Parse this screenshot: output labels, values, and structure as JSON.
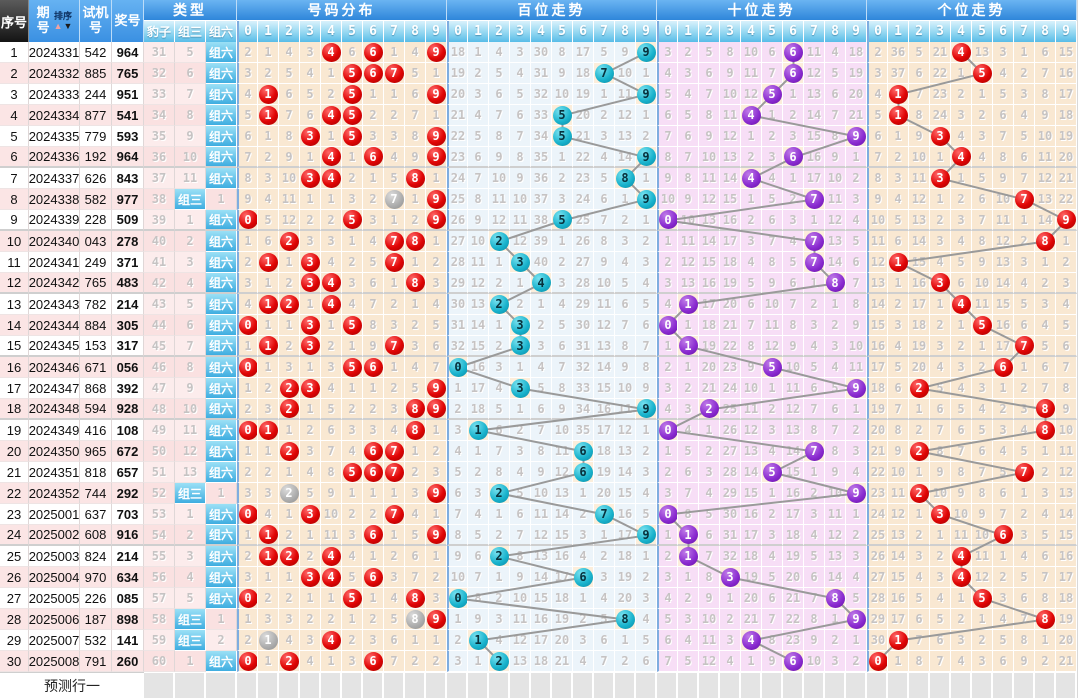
{
  "header": {
    "seq_label": "序号",
    "period_label": "期号",
    "sort_label": "排序",
    "test_label": "试机号",
    "prize_label": "奖号",
    "type_label": "类型",
    "type_subs": [
      "豹子",
      "组三",
      "组六"
    ],
    "sections": [
      {
        "id": "dist",
        "label": "号码分布"
      },
      {
        "id": "hundreds",
        "label": "百位走势"
      },
      {
        "id": "tens",
        "label": "十位走势"
      },
      {
        "id": "units",
        "label": "个位走势"
      }
    ],
    "digits": [
      "0",
      "1",
      "2",
      "3",
      "4",
      "5",
      "6",
      "7",
      "8",
      "9"
    ]
  },
  "footer": {
    "prediction_label": "预测行一"
  },
  "rows": [
    {
      "seq": 1,
      "period": "2024331",
      "test": "542",
      "prize": "964"
    },
    {
      "seq": 2,
      "period": "2024332",
      "test": "885",
      "prize": "765"
    },
    {
      "seq": 3,
      "period": "2024333",
      "test": "244",
      "prize": "951"
    },
    {
      "seq": 4,
      "period": "2024334",
      "test": "877",
      "prize": "541"
    },
    {
      "seq": 5,
      "period": "2024335",
      "test": "779",
      "prize": "593"
    },
    {
      "seq": 6,
      "period": "2024336",
      "test": "192",
      "prize": "964"
    },
    {
      "seq": 7,
      "period": "2024337",
      "test": "626",
      "prize": "843"
    },
    {
      "seq": 8,
      "period": "2024338",
      "test": "582",
      "prize": "977"
    },
    {
      "seq": 9,
      "period": "2024339",
      "test": "228",
      "prize": "509"
    },
    {
      "seq": 10,
      "period": "2024340",
      "test": "043",
      "prize": "278"
    },
    {
      "seq": 11,
      "period": "2024341",
      "test": "249",
      "prize": "371"
    },
    {
      "seq": 12,
      "period": "2024342",
      "test": "765",
      "prize": "483"
    },
    {
      "seq": 13,
      "period": "2024343",
      "test": "782",
      "prize": "214"
    },
    {
      "seq": 14,
      "period": "2024344",
      "test": "884",
      "prize": "305"
    },
    {
      "seq": 15,
      "period": "2024345",
      "test": "153",
      "prize": "317"
    },
    {
      "seq": 16,
      "period": "2024346",
      "test": "671",
      "prize": "056"
    },
    {
      "seq": 17,
      "period": "2024347",
      "test": "868",
      "prize": "392"
    },
    {
      "seq": 18,
      "period": "2024348",
      "test": "594",
      "prize": "928"
    },
    {
      "seq": 19,
      "period": "2024349",
      "test": "416",
      "prize": "108"
    },
    {
      "seq": 20,
      "period": "2024350",
      "test": "965",
      "prize": "672"
    },
    {
      "seq": 21,
      "period": "2024351",
      "test": "818",
      "prize": "657"
    },
    {
      "seq": 22,
      "period": "2024352",
      "test": "744",
      "prize": "292"
    },
    {
      "seq": 23,
      "period": "2025001",
      "test": "637",
      "prize": "703"
    },
    {
      "seq": 24,
      "period": "2025002",
      "test": "608",
      "prize": "916"
    },
    {
      "seq": 25,
      "period": "2025003",
      "test": "824",
      "prize": "214"
    },
    {
      "seq": 26,
      "period": "2025004",
      "test": "970",
      "prize": "634"
    },
    {
      "seq": 27,
      "period": "2025005",
      "test": "226",
      "prize": "085"
    },
    {
      "seq": 28,
      "period": "2025006",
      "test": "187",
      "prize": "898"
    },
    {
      "seq": 29,
      "period": "2025007",
      "test": "532",
      "prize": "141"
    },
    {
      "seq": 30,
      "period": "2025008",
      "test": "791",
      "prize": "260"
    }
  ],
  "type_columns": {
    "leopard": [
      31,
      32,
      33,
      34,
      35,
      36,
      37,
      38,
      39,
      40,
      41,
      42,
      43,
      44,
      45,
      46,
      47,
      48,
      49,
      50,
      51,
      52,
      53,
      54,
      55,
      56,
      57,
      58,
      59,
      60
    ],
    "group3": [
      "5",
      "6",
      "7",
      "8",
      "9",
      "10",
      "11",
      "组三",
      "1",
      "2",
      "3",
      "4",
      "5",
      "6",
      "7",
      "8",
      "9",
      "10",
      "11",
      "12",
      "13",
      "组三",
      "1",
      "2",
      "3",
      "4",
      "5",
      "组三",
      "组三",
      "1"
    ],
    "group6": [
      "组六",
      "组六",
      "组六",
      "组六",
      "组六",
      "组六",
      "组六",
      "1",
      "组六",
      "组六",
      "组六",
      "组六",
      "组六",
      "组六",
      "组六",
      "组六",
      "组六",
      "组六",
      "组六",
      "组六",
      "组六",
      "1",
      "组六",
      "组六",
      "组六",
      "组六",
      "组六",
      "1",
      "2",
      "组六"
    ]
  },
  "trend": {
    "dist_prev": [
      1,
      0,
      3,
      2,
      0,
      5,
      0,
      0,
      3,
      0
    ],
    "hundreds_prev": [
      17,
      0,
      3,
      2,
      29,
      7,
      16,
      4,
      8,
      0
    ],
    "tens_prev": [
      2,
      1,
      4,
      7,
      9,
      5,
      0,
      10,
      3,
      17
    ],
    "units_prev": [
      1,
      35,
      4,
      20,
      0,
      12,
      2,
      0,
      5,
      14
    ]
  },
  "layout": {
    "group_separators_after": [
      6,
      9,
      12,
      15,
      18,
      24
    ]
  },
  "colors": {
    "header_blue": "#3a90e2",
    "subheader_cyan": "#58bce8",
    "seq_header_black": "#141414",
    "ball_red": "#e00505",
    "ball_gray": "#adadad",
    "ball_cyan": "#18b2cc",
    "ball_purple": "#8a2bd0",
    "line_gray": "#9a9a9a",
    "dist_bg": "#f9e8d2",
    "hundreds_bg": "#ecf4fa",
    "tens_bg": "#f7def6",
    "units_bg": "#f9e8d2",
    "hit_cell_bg": "#fceedb",
    "row_pink": "#fbe5e5",
    "footer_gray": "#e4e4e4"
  }
}
